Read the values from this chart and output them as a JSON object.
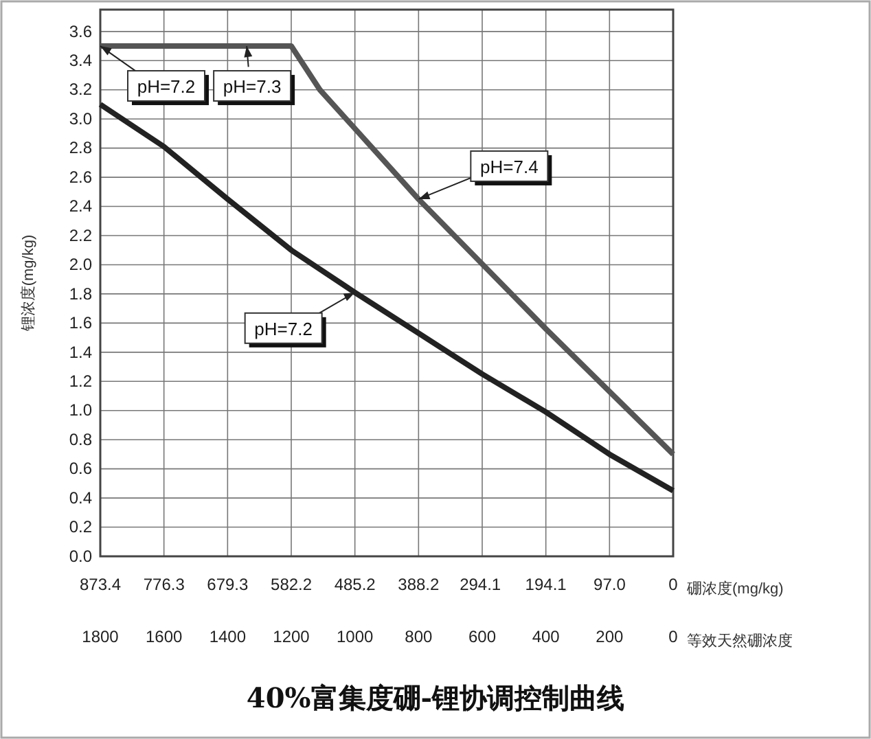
{
  "chart_data": {
    "type": "line",
    "title": "40%富集度硼-锂协调控制曲线",
    "ylabel": "锂浓度(mg/kg)",
    "xlabel": "等效天然硼浓度",
    "x2label": "硼浓度(mg/kg)",
    "xlim": [
      1800,
      0
    ],
    "xticks": [
      1800,
      1600,
      1400,
      1200,
      1000,
      800,
      600,
      400,
      200,
      0
    ],
    "x2lim": [
      873.4,
      0
    ],
    "x2ticks": [
      873.4,
      776.3,
      679.3,
      582.2,
      485.2,
      388.2,
      294.1,
      194.1,
      {
        "value": 97.0,
        "label": "97.0"
      },
      0
    ],
    "ylim": [
      0,
      3.75
    ],
    "yticks": [
      {
        "value": 0,
        "label": "0.0"
      },
      0.2,
      0.4,
      0.6,
      0.8,
      {
        "value": 1,
        "label": "1.0"
      },
      1.2,
      1.4,
      1.6,
      1.8,
      {
        "value": 2,
        "label": "2.0"
      },
      2.2,
      2.4,
      2.6,
      2.8,
      {
        "value": 3,
        "label": "3.0"
      },
      3.2,
      3.4,
      3.6
    ],
    "grid": true,
    "marker": "none",
    "line_style": "solid",
    "series": [
      {
        "color": "#555555",
        "x": [
          1800,
          1200,
          1110,
          800,
          400,
          0
        ],
        "values": [
          3.5,
          3.5,
          3.2,
          2.45,
          1.56,
          0.7
        ]
      },
      {
        "color": "#222222",
        "x": [
          1800,
          1600,
          1400,
          1200,
          1000,
          800,
          600,
          400,
          200,
          0
        ],
        "values": [
          3.1,
          2.81,
          2.45,
          2.1,
          1.81,
          1.53,
          1.25,
          0.99,
          0.7,
          0.45
        ]
      }
    ],
    "annotations": [
      {
        "text": "pH=7.2",
        "x": 1800,
        "y": 3.5
      },
      {
        "text": "pH=7.3",
        "x": 1340,
        "y": 3.5
      },
      {
        "text": "pH=7.4",
        "x": 800,
        "y": 2.45
      },
      {
        "text": "pH=7.2",
        "x": 1000,
        "y": 1.81
      }
    ]
  }
}
